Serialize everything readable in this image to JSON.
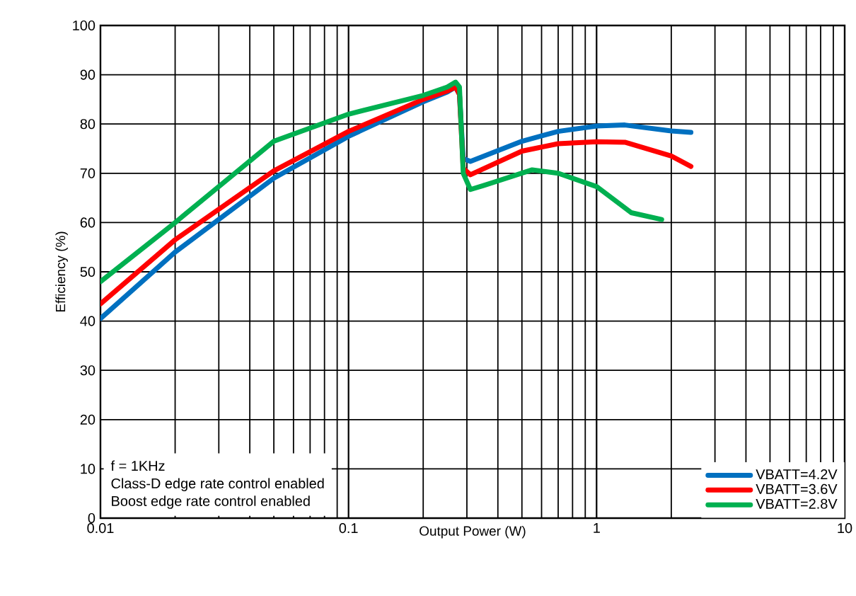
{
  "chart_data": {
    "type": "line",
    "xlabel": "Output Power (W)",
    "ylabel": "Efficiency (%)",
    "log": "x",
    "xlim": [
      0.01,
      10
    ],
    "ylim": [
      0,
      100
    ],
    "xticks": [
      0.01,
      0.1,
      1,
      10
    ],
    "yticks": [
      0,
      10,
      20,
      30,
      40,
      50,
      60,
      70,
      80,
      90,
      100
    ],
    "grid": true,
    "legend": "bottom right",
    "marker": "none",
    "line_style": "solid",
    "annotations": [
      "f = 1KHz",
      "Class-D edge rate control enabled",
      "Boost edge rate control enabled"
    ],
    "series": [
      {
        "name": "VBATT=4.2V",
        "color": "#0070c0",
        "x": [
          0.01,
          0.02,
          0.05,
          0.1,
          0.2,
          0.25,
          0.27,
          0.28,
          0.29,
          0.31,
          0.5,
          0.7,
          1,
          1.3,
          2,
          2.4
        ],
        "values": [
          40.5,
          54,
          69,
          77.5,
          84.5,
          86.5,
          87.5,
          86,
          73,
          72.4,
          76.5,
          78.5,
          79.6,
          79.8,
          78.6,
          78.3
        ]
      },
      {
        "name": "VBATT=3.6V",
        "color": "#ff0000",
        "x": [
          0.01,
          0.02,
          0.05,
          0.1,
          0.2,
          0.25,
          0.27,
          0.28,
          0.29,
          0.31,
          0.5,
          0.7,
          1,
          1.3,
          2,
          2.4
        ],
        "values": [
          43.5,
          56.5,
          70.5,
          78.5,
          85,
          86.7,
          87.5,
          86,
          71,
          69.7,
          74.5,
          76,
          76.4,
          76.3,
          73.5,
          71.4
        ]
      },
      {
        "name": "VBATT=2.8V",
        "color": "#00b050",
        "x": [
          0.01,
          0.02,
          0.05,
          0.1,
          0.2,
          0.25,
          0.27,
          0.28,
          0.29,
          0.31,
          0.35,
          0.55,
          0.7,
          1,
          1.38,
          1.83
        ],
        "values": [
          48,
          60,
          76.5,
          82,
          85.8,
          87.5,
          88.5,
          87.5,
          70,
          66.7,
          67.5,
          70.7,
          70,
          67.3,
          62,
          60.6
        ]
      }
    ]
  }
}
